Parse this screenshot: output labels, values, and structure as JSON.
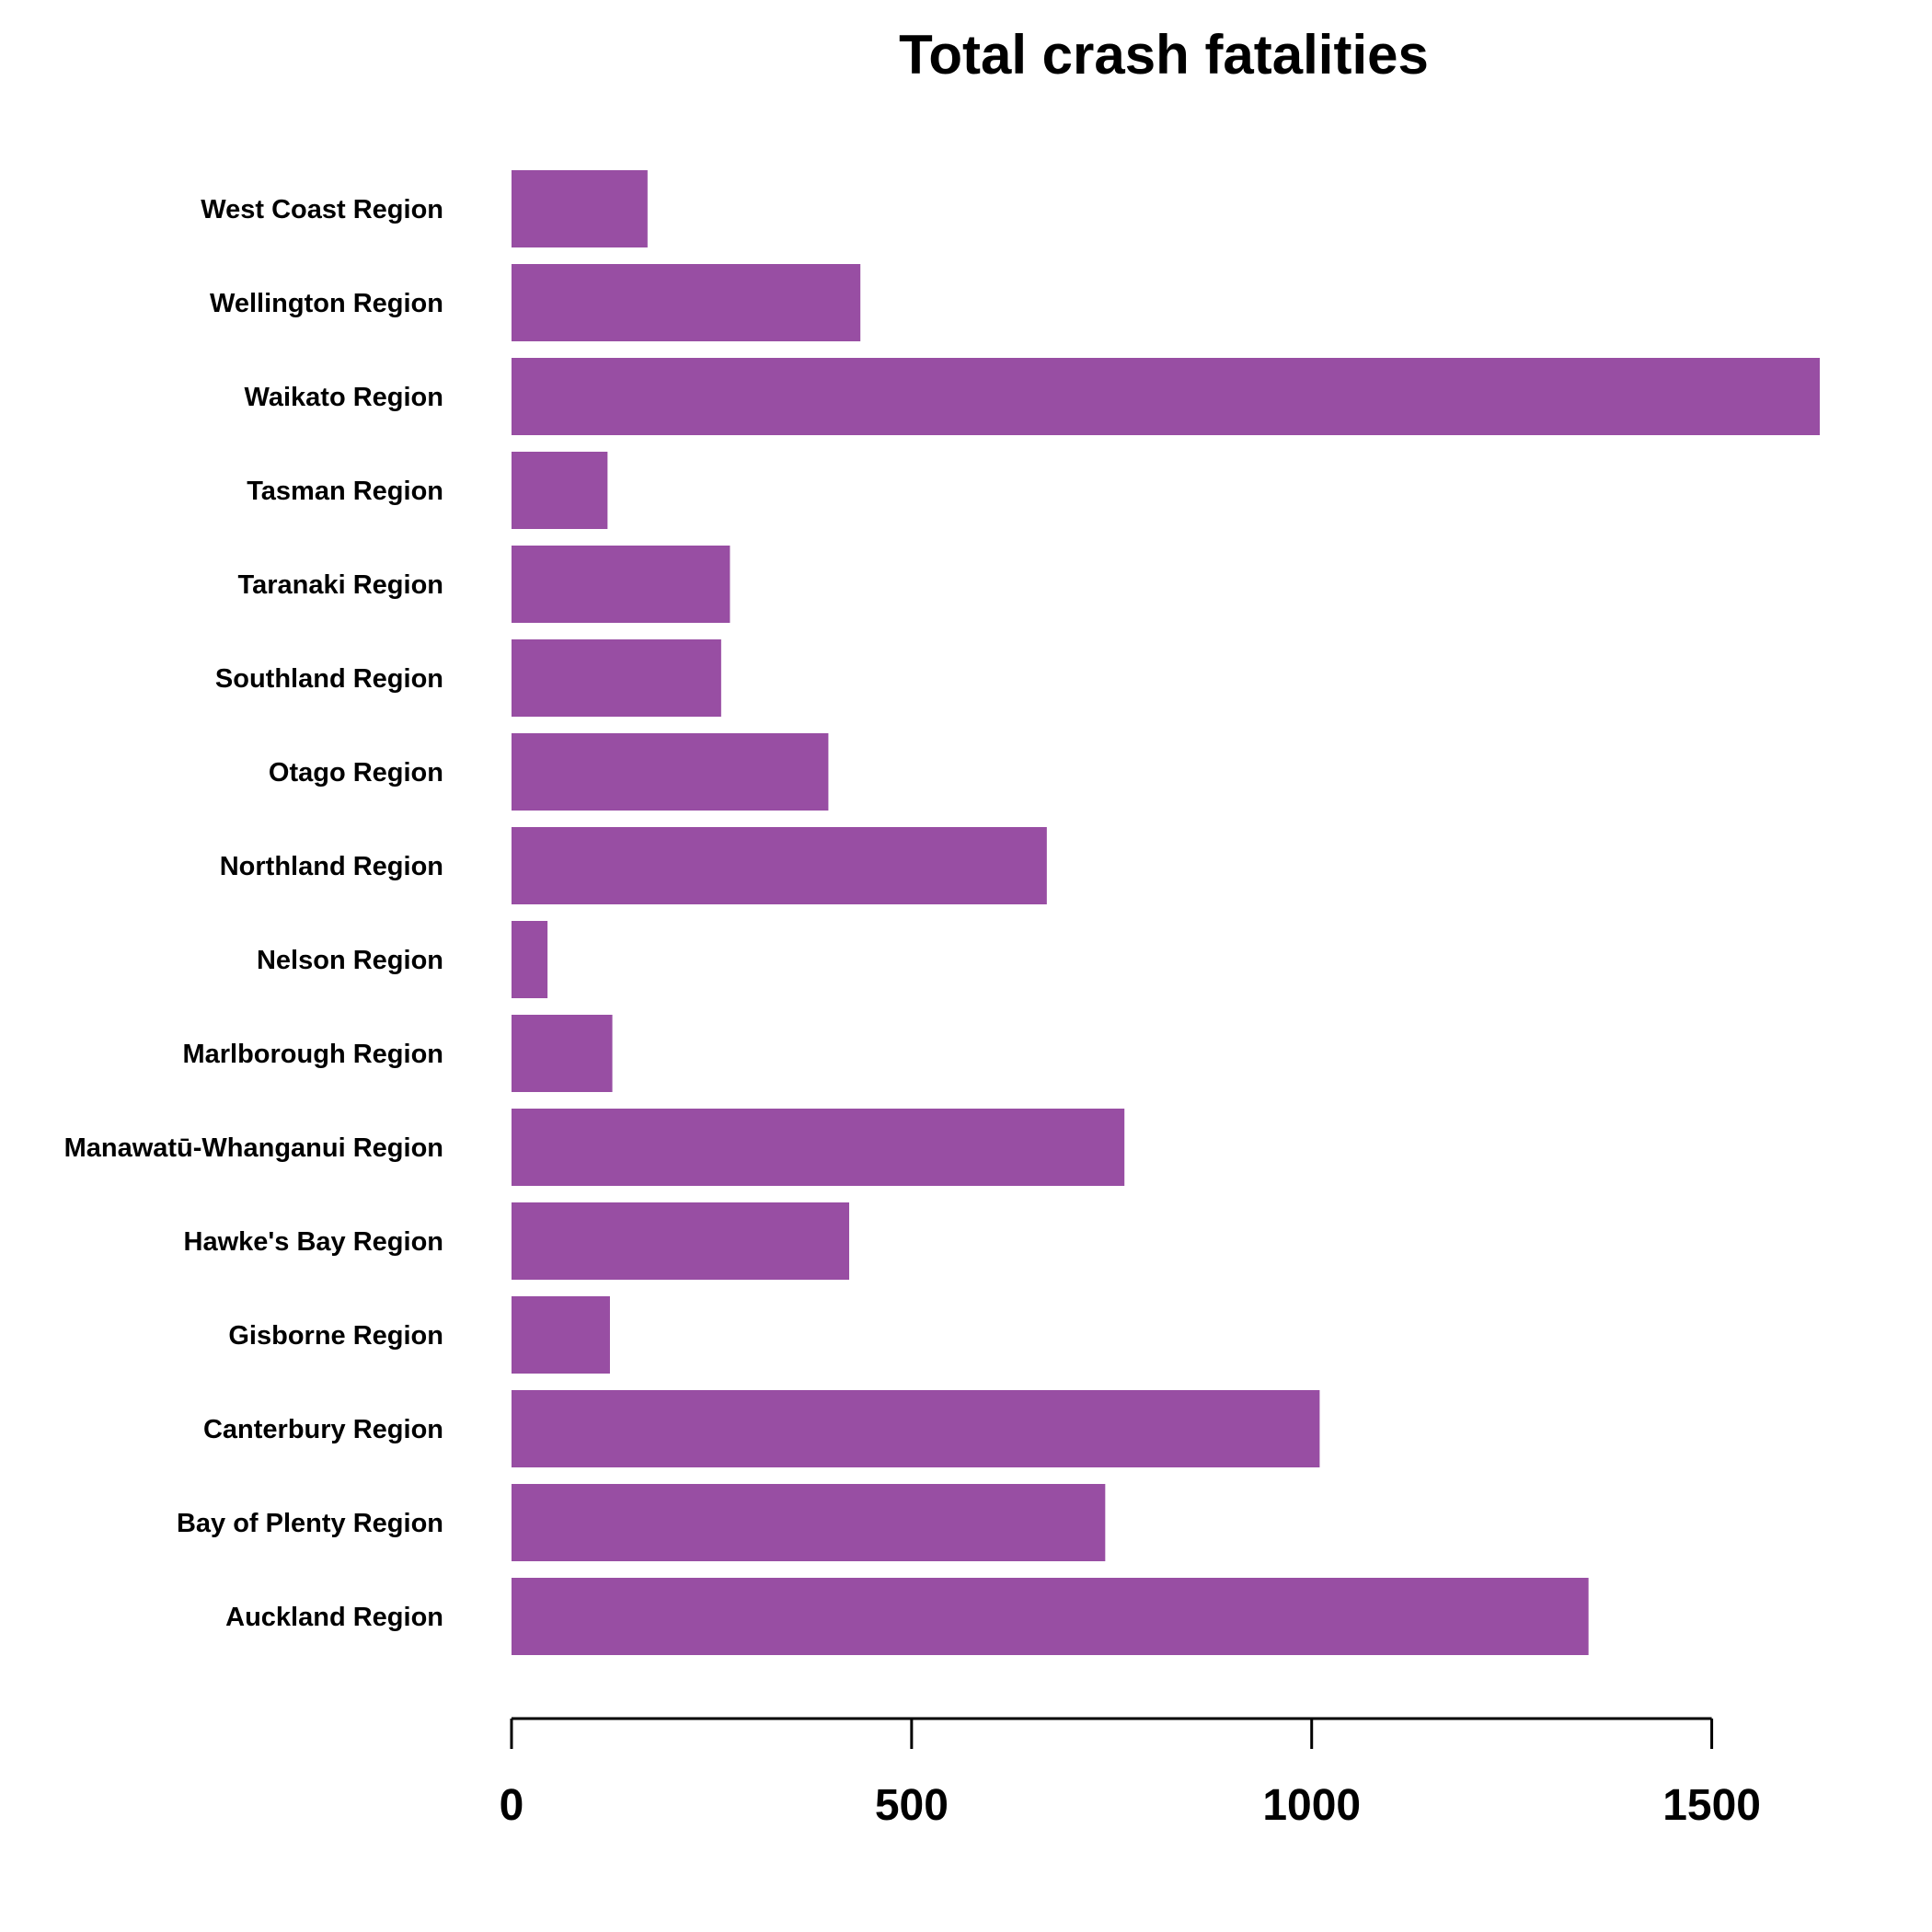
{
  "chart_data": {
    "type": "bar",
    "orientation": "horizontal",
    "title": "Total crash fatalities",
    "xlabel": "",
    "ylabel": "",
    "categories": [
      "West Coast Region",
      "Wellington Region",
      "Waikato Region",
      "Tasman Region",
      "Taranaki Region",
      "Southland Region",
      "Otago Region",
      "Northland Region",
      "Nelson Region",
      "Marlborough Region",
      "Manawatū-Whanganui Region",
      "Hawke's Bay Region",
      "Gisborne Region",
      "Canterbury Region",
      "Bay of Plenty Region",
      "Auckland Region"
    ],
    "values": [
      170,
      436,
      1635,
      120,
      273,
      262,
      396,
      669,
      45,
      126,
      766,
      422,
      123,
      1010,
      742,
      1346
    ],
    "xlim": [
      0,
      1635
    ],
    "xticks": [
      0,
      500,
      1000,
      1500
    ],
    "xtick_labels": [
      "0",
      "500",
      "1000",
      "1500"
    ],
    "bar_color": "#984ea3",
    "grid": false,
    "legend": "none"
  }
}
